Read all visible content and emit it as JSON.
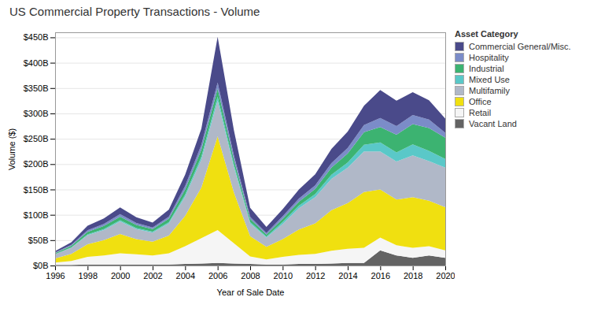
{
  "chart_data": {
    "type": "area",
    "stacked": true,
    "title": "US Commercial Property Transactions - Volume",
    "xlabel": "Year of Sale Date",
    "ylabel": "Volume ($)",
    "legend_title": "Asset Category",
    "legend": "upper right",
    "grid": true,
    "x": [
      1996,
      1997,
      1998,
      1999,
      2000,
      2001,
      2002,
      2003,
      2004,
      2005,
      2006,
      2007,
      2008,
      2009,
      2010,
      2011,
      2012,
      2013,
      2014,
      2015,
      2016,
      2017,
      2018,
      2019,
      2020
    ],
    "series": [
      {
        "name": "Vacant Land",
        "color": "#636363",
        "values": [
          1,
          1,
          2,
          2,
          2,
          2,
          2,
          2,
          3,
          4,
          5,
          4,
          3,
          2,
          2,
          3,
          3,
          4,
          5,
          5,
          30,
          20,
          15,
          20,
          15
        ]
      },
      {
        "name": "Retail",
        "color": "#f5f5f5",
        "values": [
          5,
          8,
          15,
          18,
          22,
          20,
          18,
          22,
          35,
          50,
          65,
          40,
          15,
          10,
          15,
          18,
          20,
          25,
          28,
          30,
          25,
          20,
          20,
          18,
          15
        ]
      },
      {
        "name": "Office",
        "color": "#f0e010",
        "values": [
          8,
          14,
          25,
          30,
          38,
          30,
          27,
          35,
          60,
          100,
          185,
          100,
          40,
          25,
          35,
          50,
          60,
          80,
          90,
          110,
          95,
          90,
          100,
          90,
          85
        ]
      },
      {
        "name": "Multifamily",
        "color": "#b0b8c8",
        "values": [
          8,
          12,
          18,
          20,
          25,
          20,
          18,
          24,
          38,
          55,
          70,
          50,
          25,
          18,
          30,
          42,
          52,
          62,
          70,
          80,
          75,
          75,
          82,
          78,
          78
        ]
      },
      {
        "name": "Mixed Use",
        "color": "#5ac8c8",
        "values": [
          0.5,
          0.8,
          1.5,
          2,
          2.5,
          2,
          1.8,
          2.5,
          4,
          6,
          8,
          5,
          3,
          2,
          4,
          5,
          6,
          8,
          10,
          13,
          18,
          18,
          22,
          20,
          17
        ]
      },
      {
        "name": "Industrial",
        "color": "#3cb371",
        "values": [
          2,
          3,
          5,
          6,
          7,
          6,
          5,
          7,
          10,
          14,
          16,
          10,
          6,
          4,
          6,
          8,
          10,
          14,
          18,
          25,
          30,
          35,
          40,
          45,
          42
        ]
      },
      {
        "name": "Hospitality",
        "color": "#7b8cc8",
        "values": [
          1,
          2,
          3,
          4,
          5,
          4,
          3,
          4,
          7,
          9,
          12,
          8,
          4,
          3,
          5,
          6,
          7,
          9,
          11,
          14,
          18,
          17,
          18,
          17,
          10
        ]
      },
      {
        "name": "Commercial General/Misc.",
        "color": "#4a4a8a",
        "values": [
          3,
          5,
          9,
          11,
          13,
          11,
          10,
          14,
          22,
          32,
          90,
          50,
          18,
          12,
          14,
          18,
          22,
          28,
          32,
          38,
          55,
          50,
          45,
          38,
          28
        ]
      }
    ],
    "xlim": [
      1996,
      2020
    ],
    "xticks": [
      1996,
      1998,
      2000,
      2002,
      2004,
      2006,
      2008,
      2010,
      2012,
      2014,
      2016,
      2018,
      2020
    ],
    "ylim": [
      0,
      460
    ],
    "yticks": [
      {
        "value": 0,
        "label": "$0B"
      },
      {
        "value": 50,
        "label": "$50B"
      },
      {
        "value": 100,
        "label": "$100B"
      },
      {
        "value": 150,
        "label": "$150B"
      },
      {
        "value": 200,
        "label": "$200B"
      },
      {
        "value": 250,
        "label": "$250B"
      },
      {
        "value": 300,
        "label": "$300B"
      },
      {
        "value": 350,
        "label": "$350B"
      },
      {
        "value": 400,
        "label": "$400B"
      },
      {
        "value": 450,
        "label": "$450B"
      }
    ]
  }
}
